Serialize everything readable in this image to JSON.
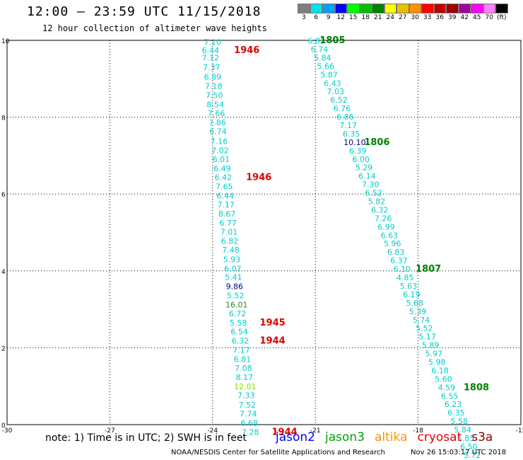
{
  "header": {
    "title": "12:00 – 23:59 UTC 11/15/2018",
    "subtitle": "12 hour collection of altimeter wave heights"
  },
  "legend": {
    "labels": [
      "3",
      "6",
      "9",
      "12",
      "15",
      "18",
      "21",
      "24",
      "27",
      "30",
      "33",
      "36",
      "39",
      "42",
      "45",
      "70",
      "(ft)"
    ],
    "colors": [
      "#7f7f7f",
      "#00e5e5",
      "#00a0ff",
      "#0000ff",
      "#00ff00",
      "#00c000",
      "#008000",
      "#ffff00",
      "#e6c000",
      "#ff9000",
      "#ff0000",
      "#c00000",
      "#a00000",
      "#a000a0",
      "#ff00ff",
      "#ff80ff",
      "#000000"
    ]
  },
  "chart_data": {
    "type": "scatter",
    "xlim": [
      -30,
      -15
    ],
    "ylim": [
      0,
      10
    ],
    "xticks": [
      "-30",
      "-27",
      "-24",
      "-21",
      "-18",
      "-15"
    ],
    "yticks": [
      "0",
      "2",
      "4",
      "6",
      "8",
      "10"
    ],
    "value_color_key": {
      "cyan": "#00cccc",
      "darkblue": "#00008b",
      "green": "#228b22",
      "lime": "#80e000"
    },
    "points": [
      {
        "x": -24.0,
        "y": 9.95,
        "v": "7.10",
        "c": "cyan"
      },
      {
        "x": -24.06,
        "y": 9.74,
        "v": "6.44",
        "c": "cyan"
      },
      {
        "x": -24.06,
        "y": 9.55,
        "v": "7.12",
        "c": "cyan"
      },
      {
        "x": -24.03,
        "y": 9.3,
        "v": "7.37",
        "c": "cyan"
      },
      {
        "x": -24.0,
        "y": 9.05,
        "v": "6.89",
        "c": "cyan"
      },
      {
        "x": -23.97,
        "y": 8.81,
        "v": "7.18",
        "c": "cyan"
      },
      {
        "x": -23.95,
        "y": 8.57,
        "v": "7.50",
        "c": "cyan"
      },
      {
        "x": -23.92,
        "y": 8.33,
        "v": "8.54",
        "c": "cyan"
      },
      {
        "x": -23.89,
        "y": 8.1,
        "v": "7.66",
        "c": "cyan"
      },
      {
        "x": -23.86,
        "y": 7.86,
        "v": "7.86",
        "c": "cyan"
      },
      {
        "x": -23.84,
        "y": 7.63,
        "v": "6.74",
        "c": "cyan"
      },
      {
        "x": -23.81,
        "y": 7.38,
        "v": "7.16",
        "c": "cyan"
      },
      {
        "x": -23.78,
        "y": 7.14,
        "v": "7.02",
        "c": "cyan"
      },
      {
        "x": -23.75,
        "y": 6.91,
        "v": "6.01",
        "c": "cyan"
      },
      {
        "x": -23.72,
        "y": 6.67,
        "v": "6.49",
        "c": "cyan"
      },
      {
        "x": -23.69,
        "y": 6.44,
        "v": "6.42",
        "c": "cyan"
      },
      {
        "x": -23.66,
        "y": 6.2,
        "v": "7.65",
        "c": "cyan"
      },
      {
        "x": -23.63,
        "y": 5.96,
        "v": "6.44",
        "c": "cyan"
      },
      {
        "x": -23.61,
        "y": 5.73,
        "v": "7.17",
        "c": "cyan"
      },
      {
        "x": -23.58,
        "y": 5.49,
        "v": "8.67",
        "c": "cyan"
      },
      {
        "x": -23.55,
        "y": 5.25,
        "v": "6.77",
        "c": "cyan"
      },
      {
        "x": -23.52,
        "y": 5.02,
        "v": "7.01",
        "c": "cyan"
      },
      {
        "x": -23.5,
        "y": 4.78,
        "v": "6.82",
        "c": "cyan"
      },
      {
        "x": -23.47,
        "y": 4.55,
        "v": "7.48",
        "c": "cyan"
      },
      {
        "x": -23.44,
        "y": 4.3,
        "v": "5.93",
        "c": "cyan"
      },
      {
        "x": -23.41,
        "y": 4.06,
        "v": "6.07",
        "c": "cyan"
      },
      {
        "x": -23.39,
        "y": 3.84,
        "v": "5.41",
        "c": "cyan"
      },
      {
        "x": -23.36,
        "y": 3.6,
        "v": "9.86",
        "c": "darkblue"
      },
      {
        "x": -23.33,
        "y": 3.36,
        "v": "5.52",
        "c": "cyan"
      },
      {
        "x": -23.3,
        "y": 3.12,
        "v": "16.01",
        "c": "green"
      },
      {
        "x": -23.27,
        "y": 2.89,
        "v": "6.72",
        "c": "cyan"
      },
      {
        "x": -23.25,
        "y": 2.65,
        "v": "5.58",
        "c": "cyan"
      },
      {
        "x": -23.22,
        "y": 2.42,
        "v": "6.54",
        "c": "cyan"
      },
      {
        "x": -23.19,
        "y": 2.18,
        "v": "6.32",
        "c": "cyan"
      },
      {
        "x": -23.16,
        "y": 1.94,
        "v": "7.17",
        "c": "cyan"
      },
      {
        "x": -23.13,
        "y": 1.7,
        "v": "6.81",
        "c": "cyan"
      },
      {
        "x": -23.1,
        "y": 1.47,
        "v": "7.08",
        "c": "cyan"
      },
      {
        "x": -23.07,
        "y": 1.23,
        "v": "8.17",
        "c": "cyan"
      },
      {
        "x": -23.05,
        "y": 0.99,
        "v": "12.01",
        "c": "lime"
      },
      {
        "x": -23.02,
        "y": 0.76,
        "v": "7.33",
        "c": "cyan"
      },
      {
        "x": -22.99,
        "y": 0.52,
        "v": "7.52",
        "c": "cyan"
      },
      {
        "x": -22.96,
        "y": 0.29,
        "v": "7.74",
        "c": "cyan"
      },
      {
        "x": -22.93,
        "y": 0.05,
        "v": "6.68",
        "c": "cyan"
      },
      {
        "x": -22.9,
        "y": -0.19,
        "v": "7.28",
        "c": "cyan"
      },
      {
        "x": -20.97,
        "y": 9.99,
        "v": "6.83",
        "c": "cyan"
      },
      {
        "x": -20.88,
        "y": 9.77,
        "v": "6.74",
        "c": "cyan"
      },
      {
        "x": -20.79,
        "y": 9.55,
        "v": "5.84",
        "c": "cyan"
      },
      {
        "x": -20.7,
        "y": 9.33,
        "v": "5.66",
        "c": "cyan"
      },
      {
        "x": -20.6,
        "y": 9.11,
        "v": "5.87",
        "c": "cyan"
      },
      {
        "x": -20.5,
        "y": 8.89,
        "v": "6.43",
        "c": "cyan"
      },
      {
        "x": -20.41,
        "y": 8.67,
        "v": "7.03",
        "c": "cyan"
      },
      {
        "x": -20.31,
        "y": 8.45,
        "v": "6.52",
        "c": "cyan"
      },
      {
        "x": -20.22,
        "y": 8.23,
        "v": "6.76",
        "c": "cyan"
      },
      {
        "x": -20.13,
        "y": 8.01,
        "v": "6.86",
        "c": "cyan"
      },
      {
        "x": -20.04,
        "y": 7.79,
        "v": "7.17",
        "c": "cyan"
      },
      {
        "x": -19.95,
        "y": 7.57,
        "v": "6.35",
        "c": "cyan"
      },
      {
        "x": -19.85,
        "y": 7.35,
        "v": "10.10",
        "c": "darkblue"
      },
      {
        "x": -19.76,
        "y": 7.13,
        "v": "6.39",
        "c": "cyan"
      },
      {
        "x": -19.67,
        "y": 6.91,
        "v": "6.00",
        "c": "cyan"
      },
      {
        "x": -19.58,
        "y": 6.69,
        "v": "5.29",
        "c": "cyan"
      },
      {
        "x": -19.49,
        "y": 6.47,
        "v": "6.14",
        "c": "cyan"
      },
      {
        "x": -19.39,
        "y": 6.25,
        "v": "7.30",
        "c": "cyan"
      },
      {
        "x": -19.3,
        "y": 6.03,
        "v": "6.52",
        "c": "cyan"
      },
      {
        "x": -19.21,
        "y": 5.81,
        "v": "5.82",
        "c": "cyan"
      },
      {
        "x": -19.12,
        "y": 5.59,
        "v": "6.32",
        "c": "cyan"
      },
      {
        "x": -19.02,
        "y": 5.37,
        "v": "7.26",
        "c": "cyan"
      },
      {
        "x": -18.93,
        "y": 5.15,
        "v": "6.99",
        "c": "cyan"
      },
      {
        "x": -18.84,
        "y": 4.93,
        "v": "6.63",
        "c": "cyan"
      },
      {
        "x": -18.75,
        "y": 4.71,
        "v": "5.96",
        "c": "cyan"
      },
      {
        "x": -18.65,
        "y": 4.49,
        "v": "6.83",
        "c": "cyan"
      },
      {
        "x": -18.56,
        "y": 4.27,
        "v": "6.37",
        "c": "cyan"
      },
      {
        "x": -18.47,
        "y": 4.05,
        "v": "6.10",
        "c": "cyan"
      },
      {
        "x": -18.38,
        "y": 3.83,
        "v": "4.85",
        "c": "cyan"
      },
      {
        "x": -18.28,
        "y": 3.61,
        "v": "5.63",
        "c": "cyan"
      },
      {
        "x": -18.19,
        "y": 3.39,
        "v": "6.19",
        "c": "cyan"
      },
      {
        "x": -18.1,
        "y": 3.17,
        "v": "5.68",
        "c": "cyan"
      },
      {
        "x": -18.01,
        "y": 2.95,
        "v": "5.39",
        "c": "cyan"
      },
      {
        "x": -17.91,
        "y": 2.73,
        "v": "5.74",
        "c": "cyan"
      },
      {
        "x": -17.82,
        "y": 2.51,
        "v": "5.52",
        "c": "cyan"
      },
      {
        "x": -17.73,
        "y": 2.29,
        "v": "5.17",
        "c": "cyan"
      },
      {
        "x": -17.64,
        "y": 2.07,
        "v": "5.89",
        "c": "cyan"
      },
      {
        "x": -17.54,
        "y": 1.85,
        "v": "5.97",
        "c": "cyan"
      },
      {
        "x": -17.45,
        "y": 1.63,
        "v": "5.98",
        "c": "cyan"
      },
      {
        "x": -17.36,
        "y": 1.41,
        "v": "6.18",
        "c": "cyan"
      },
      {
        "x": -17.26,
        "y": 1.19,
        "v": "5.60",
        "c": "cyan"
      },
      {
        "x": -17.17,
        "y": 0.97,
        "v": "4.59",
        "c": "cyan"
      },
      {
        "x": -17.08,
        "y": 0.75,
        "v": "6.55",
        "c": "cyan"
      },
      {
        "x": -16.98,
        "y": 0.53,
        "v": "6.23",
        "c": "cyan"
      },
      {
        "x": -16.89,
        "y": 0.31,
        "v": "6.35",
        "c": "cyan"
      },
      {
        "x": -16.8,
        "y": 0.09,
        "v": "5.58",
        "c": "cyan"
      },
      {
        "x": -16.7,
        "y": -0.13,
        "v": "5.84",
        "c": "cyan"
      },
      {
        "x": -16.61,
        "y": -0.35,
        "v": "5.85",
        "c": "cyan"
      },
      {
        "x": -16.52,
        "y": -0.57,
        "v": "6.50",
        "c": "cyan"
      },
      {
        "x": -16.42,
        "y": -0.79,
        "v": "5.72",
        "c": "cyan"
      }
    ],
    "time_labels": [
      {
        "x": -23.0,
        "y": 9.74,
        "t": "1946",
        "c": "#dd0000"
      },
      {
        "x": -22.65,
        "y": 6.44,
        "t": "1946",
        "c": "#dd0000"
      },
      {
        "x": -22.25,
        "y": 2.65,
        "t": "1945",
        "c": "#dd0000"
      },
      {
        "x": -22.25,
        "y": 2.18,
        "t": "1944",
        "c": "#dd0000"
      },
      {
        "x": -21.9,
        "y": -0.19,
        "t": "1944",
        "c": "#dd0000"
      },
      {
        "x": -20.5,
        "y": 10.0,
        "t": "1805",
        "c": "#008000"
      },
      {
        "x": -19.2,
        "y": 7.35,
        "t": "1806",
        "c": "#008000"
      },
      {
        "x": -17.7,
        "y": 4.05,
        "t": "1807",
        "c": "#008000"
      },
      {
        "x": -16.3,
        "y": 0.97,
        "t": "1808",
        "c": "#008000"
      }
    ]
  },
  "note": "note: 1) Time is in UTC; 2) SWH is in feet",
  "satellites": [
    {
      "name": "jason2",
      "color": "#0000ee"
    },
    {
      "name": "jason3",
      "color": "#00a000"
    },
    {
      "name": "altika",
      "color": "#ff9000"
    },
    {
      "name": "cryosat",
      "color": "#ee0000"
    },
    {
      "name": "s3a",
      "color": "#8b0000"
    }
  ],
  "footer": {
    "org": "NOAA/NESDIS Center for Satellite Applications and Research",
    "timestamp": "Nov 26 15:03:17 UTC 2018"
  }
}
